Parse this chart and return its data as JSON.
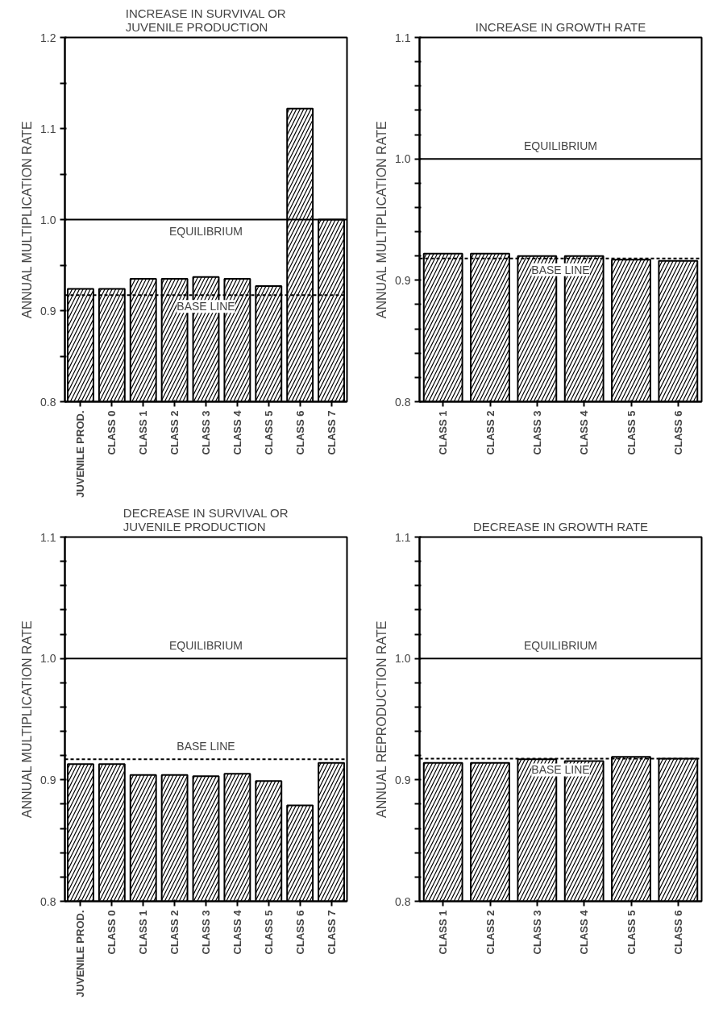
{
  "chart_data": [
    {
      "type": "bar",
      "title": "INCREASE IN SURVIVAL OR\nJUVENILE PRODUCTION",
      "ylabel": "ANNUAL MULTIPLICATION RATE",
      "categories": [
        "JUVENILE PROD.",
        "CLASS 0",
        "CLASS 1",
        "CLASS 2",
        "CLASS 3",
        "CLASS 4",
        "CLASS 5",
        "CLASS 6",
        "CLASS 7"
      ],
      "values": [
        0.924,
        0.924,
        0.935,
        0.935,
        0.937,
        0.935,
        0.927,
        1.122,
        1.0
      ],
      "color": "#ffffff",
      "ylim": [
        0.8,
        1.2
      ],
      "yticks": [
        0.8,
        {
          "value": 0.85,
          "label": null
        },
        0.9,
        {
          "value": 0.95,
          "label": null
        },
        {
          "value": 1.0,
          "label": "1.0"
        },
        {
          "value": 1.05,
          "label": null
        },
        1.1,
        {
          "value": 1.15,
          "label": null
        },
        1.2
      ],
      "ref_lines": [
        {
          "axis": "y",
          "value": 1.0,
          "label": "EQUILIBRIUM",
          "line_style": "solid"
        },
        {
          "axis": "y",
          "value": 0.917,
          "label": "BASE LINE",
          "line_style": "dashed"
        }
      ]
    },
    {
      "type": "bar",
      "title": "INCREASE IN GROWTH RATE",
      "ylabel": "ANNUAL MULTIPLICATION RATE",
      "categories": [
        "CLASS 1",
        "CLASS 2",
        "CLASS 3",
        "CLASS 4",
        "CLASS 5",
        "CLASS 6"
      ],
      "values": [
        0.922,
        0.922,
        0.92,
        0.92,
        0.917,
        0.916
      ],
      "color": "#ffffff",
      "ylim": [
        0.8,
        1.1
      ],
      "yticks": [
        0.8,
        {
          "value": 0.82,
          "label": null
        },
        {
          "value": 0.84,
          "label": null
        },
        {
          "value": 0.86,
          "label": null
        },
        {
          "value": 0.88,
          "label": null
        },
        0.9,
        {
          "value": 0.92,
          "label": null
        },
        {
          "value": 0.94,
          "label": null
        },
        {
          "value": 0.96,
          "label": null
        },
        {
          "value": 0.98,
          "label": null
        },
        {
          "value": 1.0,
          "label": "1.0"
        },
        {
          "value": 1.02,
          "label": null
        },
        {
          "value": 1.04,
          "label": null
        },
        {
          "value": 1.06,
          "label": null
        },
        {
          "value": 1.08,
          "label": null
        },
        1.1
      ],
      "ref_lines": [
        {
          "axis": "y",
          "value": 1.0,
          "label": "EQUILIBRIUM",
          "line_style": "solid"
        },
        {
          "axis": "y",
          "value": 0.918,
          "label": "BASE LINE",
          "line_style": "dashed"
        }
      ]
    },
    {
      "type": "bar",
      "title": "DECREASE IN SURVIVAL OR\nJUVENILE PRODUCTION",
      "ylabel": "ANNUAL MULTIPLICATION RATE",
      "categories": [
        "JUVENILE PROD.",
        "CLASS 0",
        "CLASS 1",
        "CLASS 2",
        "CLASS 3",
        "CLASS 4",
        "CLASS 5",
        "CLASS 6",
        "CLASS 7"
      ],
      "values": [
        0.913,
        0.913,
        0.904,
        0.904,
        0.903,
        0.905,
        0.899,
        0.879,
        0.914
      ],
      "color": "#ffffff",
      "ylim": [
        0.8,
        1.1
      ],
      "yticks": [
        0.8,
        {
          "value": 0.82,
          "label": null
        },
        {
          "value": 0.84,
          "label": null
        },
        {
          "value": 0.86,
          "label": null
        },
        {
          "value": 0.88,
          "label": null
        },
        0.9,
        {
          "value": 0.92,
          "label": null
        },
        {
          "value": 0.94,
          "label": null
        },
        {
          "value": 0.96,
          "label": null
        },
        {
          "value": 0.98,
          "label": null
        },
        {
          "value": 1.0,
          "label": "1.0"
        },
        {
          "value": 1.02,
          "label": null
        },
        {
          "value": 1.04,
          "label": null
        },
        {
          "value": 1.06,
          "label": null
        },
        {
          "value": 1.08,
          "label": null
        },
        1.1
      ],
      "ref_lines": [
        {
          "axis": "y",
          "value": 1.0,
          "label": "EQUILIBRIUM",
          "line_style": "solid"
        },
        {
          "axis": "y",
          "value": 0.917,
          "label": "BASE LINE",
          "line_style": "dashed"
        }
      ]
    },
    {
      "type": "bar",
      "title": "DECREASE IN GROWTH RATE",
      "ylabel": "ANNUAL REPRODUCTION RATE",
      "categories": [
        "CLASS 1",
        "CLASS 2",
        "CLASS 3",
        "CLASS 4",
        "CLASS 5",
        "CLASS 6"
      ],
      "values": [
        0.914,
        0.914,
        0.917,
        0.9155,
        0.919,
        0.9175
      ],
      "color": "#ffffff",
      "ylim": [
        0.8,
        1.1
      ],
      "yticks": [
        0.8,
        {
          "value": 0.82,
          "label": null
        },
        {
          "value": 0.84,
          "label": null
        },
        {
          "value": 0.86,
          "label": null
        },
        {
          "value": 0.88,
          "label": null
        },
        0.9,
        {
          "value": 0.92,
          "label": null
        },
        {
          "value": 0.94,
          "label": null
        },
        {
          "value": 0.96,
          "label": null
        },
        {
          "value": 0.98,
          "label": null
        },
        {
          "value": 1.0,
          "label": "1.0"
        },
        {
          "value": 1.02,
          "label": null
        },
        {
          "value": 1.04,
          "label": null
        },
        {
          "value": 1.06,
          "label": null
        },
        {
          "value": 1.08,
          "label": null
        },
        1.1
      ],
      "ref_lines": [
        {
          "axis": "y",
          "value": 1.0,
          "label": "EQUILIBRIUM",
          "line_style": "solid"
        },
        {
          "axis": "y",
          "value": 0.9175,
          "label": "BASE LINE",
          "line_style": "dashed"
        }
      ]
    }
  ]
}
